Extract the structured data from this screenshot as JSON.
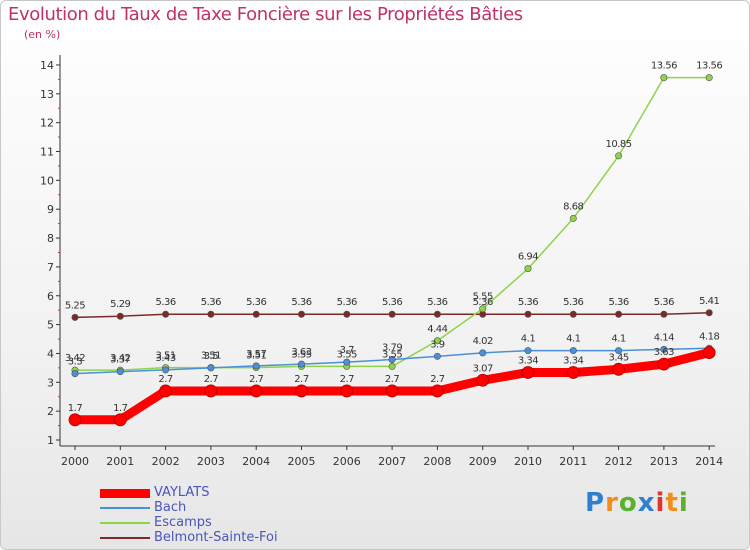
{
  "title": "Evolution du Taux de Taxe Foncière sur les Propriétés Bâties",
  "unit_label": "(en %)",
  "logo_text": "Proxiti",
  "chart_data": {
    "type": "line",
    "title": "Evolution du Taux de Taxe Foncière sur les Propriétés Bâties",
    "ylabel": "(en %)",
    "xlabel": "",
    "x": [
      "2000",
      "2001",
      "2002",
      "2003",
      "2004",
      "2005",
      "2006",
      "2007",
      "2008",
      "2009",
      "2010",
      "2011",
      "2012",
      "2013",
      "2014"
    ],
    "y_ticks": [
      "1",
      "2",
      "3",
      "4",
      "5",
      "6",
      "7",
      "8",
      "9",
      "10",
      "11",
      "12",
      "13",
      "14"
    ],
    "ylim": [
      0.5,
      14
    ],
    "grid": false,
    "legend_position": "bottom-left",
    "series": [
      {
        "name": "VAYLATS",
        "color": "#ff0000",
        "values": [
          1.7,
          1.7,
          2.7,
          2.7,
          2.7,
          2.7,
          2.7,
          2.7,
          2.7,
          3.07,
          3.34,
          3.34,
          3.45,
          3.63,
          4.03
        ],
        "labels": [
          "1.7",
          "1.7",
          "2.7",
          "2.7",
          "2.7",
          "2.7",
          "2.7",
          "2.7",
          "2.7",
          "3.07",
          "3.34",
          "3.34",
          "3.45",
          "3.63",
          ""
        ]
      },
      {
        "name": "Bach",
        "color": "#4a90d9",
        "values": [
          3.3,
          3.37,
          3.43,
          3.5,
          3.57,
          3.63,
          3.7,
          3.79,
          3.9,
          4.02,
          4.1,
          4.1,
          4.1,
          4.14,
          4.18
        ],
        "labels": [
          "3.3",
          "3.37",
          "3.43",
          "3.5",
          "3.57",
          "3.63",
          "3.7",
          "3.79",
          "3.9",
          "4.02",
          "4.1",
          "4.1",
          "4.1",
          "4.14",
          "4.18"
        ]
      },
      {
        "name": "Escamps",
        "color": "#8ed34a",
        "values": [
          3.42,
          3.42,
          3.51,
          3.51,
          3.51,
          3.55,
          3.55,
          3.55,
          4.44,
          5.55,
          6.94,
          8.68,
          10.85,
          13.56,
          13.56
        ],
        "labels": [
          "3.42",
          "3.42",
          "3.51",
          "3.51",
          "3.51",
          "3.55",
          "3.55",
          "3.55",
          "4.44",
          "5.55",
          "6.94",
          "8.68",
          "10.85",
          "13.56",
          "13.56"
        ]
      },
      {
        "name": "Belmont-Sainte-Foi",
        "color": "#7a2a2a",
        "values": [
          5.25,
          5.29,
          5.36,
          5.36,
          5.36,
          5.36,
          5.36,
          5.36,
          5.36,
          5.36,
          5.36,
          5.36,
          5.36,
          5.36,
          5.41
        ],
        "labels": [
          "5.25",
          "5.29",
          "5.36",
          "5.36",
          "5.36",
          "5.36",
          "5.36",
          "5.36",
          "5.36",
          "5.36",
          "5.36",
          "5.36",
          "5.36",
          "5.36",
          "5.41"
        ]
      }
    ]
  },
  "colors": {
    "title": "#c0306a",
    "legend_text": "#4a56b8",
    "axis": "#333333",
    "logo": [
      "#2f7fd0",
      "#f28c1a",
      "#5cb030",
      "#2f7fd0",
      "#e2342c",
      "#f28c1a",
      "#5cb030"
    ]
  }
}
